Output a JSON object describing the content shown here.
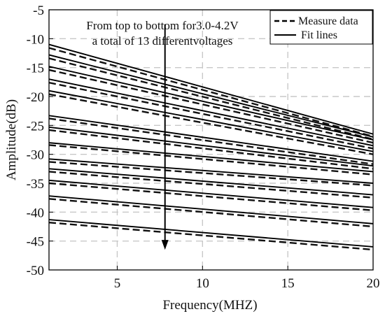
{
  "chart_data": {
    "type": "line",
    "title": "",
    "xlabel": "Frequency(MHZ)",
    "ylabel": "Amplitude(dB)",
    "xlim": [
      1,
      20
    ],
    "ylim": [
      -50,
      -5
    ],
    "xticks": [
      5,
      10,
      15,
      20
    ],
    "yticks": [
      -5,
      -10,
      -15,
      -20,
      -25,
      -30,
      -35,
      -40,
      -45,
      -50
    ],
    "xtick_labels": [
      "5",
      "10",
      "15",
      "20"
    ],
    "ytick_labels": [
      "-5",
      "-10",
      "-15",
      "-20",
      "-25",
      "-30",
      "-35",
      "-40",
      "-45",
      "-50"
    ],
    "grid": true,
    "legend": {
      "position": "top-right",
      "entries": [
        {
          "label": "Measure data",
          "style": "dashed"
        },
        {
          "label": "Fit lines",
          "style": "solid"
        }
      ]
    },
    "annotation": {
      "line1": "From top to bottom for3.0-4.2V",
      "line2": "a total of 13 differentvoltages",
      "arrow_x": 7.8,
      "arrow_y_start": -7.5,
      "arrow_y_end": -46.5
    },
    "series": [
      {
        "fit": [
          [
            1,
            -11.0
          ],
          [
            20,
            -26.5
          ]
        ],
        "measure": [
          [
            1,
            -11.6
          ],
          [
            20,
            -26.9
          ]
        ]
      },
      {
        "fit": [
          [
            1,
            -12.8
          ],
          [
            20,
            -27.0
          ]
        ],
        "measure": [
          [
            1,
            -13.4
          ],
          [
            20,
            -27.4
          ]
        ]
      },
      {
        "fit": [
          [
            1,
            -14.8
          ],
          [
            20,
            -27.5
          ]
        ],
        "measure": [
          [
            1,
            -15.4
          ],
          [
            20,
            -28.0
          ]
        ]
      },
      {
        "fit": [
          [
            1,
            -17.0
          ],
          [
            20,
            -28.5
          ]
        ],
        "measure": [
          [
            1,
            -17.6
          ],
          [
            20,
            -29.0
          ]
        ]
      },
      {
        "fit": [
          [
            1,
            -19.0
          ],
          [
            20,
            -29.5
          ]
        ],
        "measure": [
          [
            1,
            -19.6
          ],
          [
            20,
            -30.0
          ]
        ]
      },
      {
        "fit": [
          [
            1,
            -23.3
          ],
          [
            20,
            -31.2
          ]
        ],
        "measure": [
          [
            1,
            -23.8
          ],
          [
            20,
            -31.7
          ]
        ]
      },
      {
        "fit": [
          [
            1,
            -25.3
          ],
          [
            20,
            -32.0
          ]
        ],
        "measure": [
          [
            1,
            -25.8
          ],
          [
            20,
            -32.5
          ]
        ]
      },
      {
        "fit": [
          [
            1,
            -28.0
          ],
          [
            20,
            -33.0
          ]
        ],
        "measure": [
          [
            1,
            -28.4
          ],
          [
            20,
            -33.5
          ]
        ]
      },
      {
        "fit": [
          [
            1,
            -30.8
          ],
          [
            20,
            -35.0
          ]
        ],
        "measure": [
          [
            1,
            -31.3
          ],
          [
            20,
            -35.4
          ]
        ]
      },
      {
        "fit": [
          [
            1,
            -32.5
          ],
          [
            20,
            -37.0
          ]
        ],
        "measure": [
          [
            1,
            -33.0
          ],
          [
            20,
            -37.5
          ]
        ]
      },
      {
        "fit": [
          [
            1,
            -34.5
          ],
          [
            20,
            -39.2
          ]
        ],
        "measure": [
          [
            1,
            -35.0
          ],
          [
            20,
            -39.7
          ]
        ]
      },
      {
        "fit": [
          [
            1,
            -37.2
          ],
          [
            20,
            -42.0
          ]
        ],
        "measure": [
          [
            1,
            -37.7
          ],
          [
            20,
            -42.5
          ]
        ]
      },
      {
        "fit": [
          [
            1,
            -41.3
          ],
          [
            20,
            -46.0
          ]
        ],
        "measure": [
          [
            1,
            -41.8
          ],
          [
            20,
            -46.5
          ]
        ]
      }
    ]
  }
}
